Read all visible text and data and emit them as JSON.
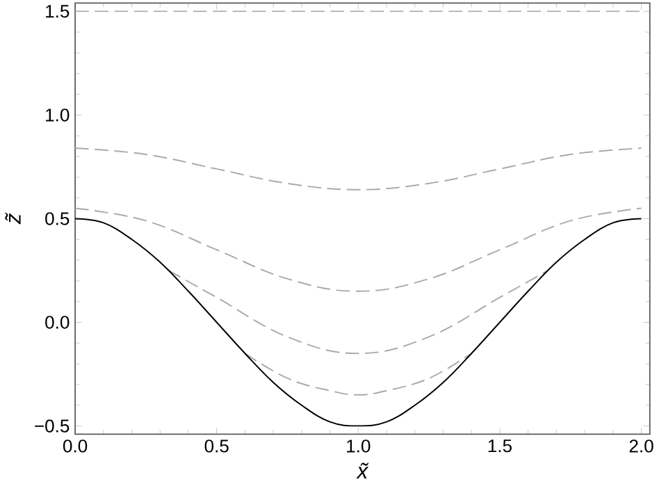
{
  "chart_data": {
    "type": "line",
    "xlabel": "x̃",
    "ylabel": "z̃",
    "xlim": [
      0,
      2.03
    ],
    "ylim": [
      -0.54,
      1.54
    ],
    "xticks": [
      {
        "value": 0,
        "label": "0.0"
      },
      0.5,
      {
        "value": 1,
        "label": "1.0"
      },
      1.5,
      {
        "value": 2,
        "label": "2.0"
      }
    ],
    "yticks": [
      {
        "value": -0.5,
        "label": "−0.5"
      },
      {
        "value": 0,
        "label": "0.0"
      },
      0.5,
      {
        "value": 1,
        "label": "1.0"
      },
      1.5
    ],
    "grid": false,
    "series": [
      {
        "color": "#aaaaaa",
        "line_style": "dashed",
        "x": [
          0,
          0.5,
          1,
          1.5,
          2
        ],
        "values": [
          1.5,
          1.5,
          1.5,
          1.5,
          1.5
        ]
      },
      {
        "color": "#aaaaaa",
        "line_style": "dashed",
        "x": [
          0,
          0.25,
          0.5,
          0.75,
          1,
          1.25,
          1.5,
          1.75,
          2
        ],
        "values": [
          0.84,
          0.81,
          0.74,
          0.67,
          0.64,
          0.67,
          0.74,
          0.81,
          0.84
        ]
      },
      {
        "color": "#aaaaaa",
        "line_style": "dashed",
        "x": [
          0,
          0.25,
          0.5,
          0.75,
          1,
          1.25,
          1.5,
          1.75,
          2
        ],
        "values": [
          0.55,
          0.49,
          0.35,
          0.21,
          0.15,
          0.21,
          0.35,
          0.49,
          0.55
        ]
      },
      {
        "color": "#aaaaaa",
        "line_style": "dashed",
        "x": [
          0.33,
          0.5,
          0.75,
          1,
          1.25,
          1.5,
          1.67
        ],
        "values": [
          0.25,
          0.12,
          -0.07,
          -0.15,
          -0.07,
          0.12,
          0.25
        ]
      },
      {
        "color": "#aaaaaa",
        "line_style": "dashed",
        "x": [
          0.6,
          0.75,
          0.9,
          1,
          1.1,
          1.25,
          1.4
        ],
        "values": [
          -0.15,
          -0.27,
          -0.33,
          -0.35,
          -0.33,
          -0.27,
          -0.15
        ]
      },
      {
        "color": "#000000",
        "line_style": "solid",
        "x": [
          0,
          0.1,
          0.2,
          0.3,
          0.4,
          0.5,
          0.6,
          0.7,
          0.8,
          0.9,
          1,
          1.1,
          1.2,
          1.3,
          1.4,
          1.5,
          1.6,
          1.7,
          1.8,
          1.9,
          2
        ],
        "values": [
          0.5,
          0.48,
          0.4,
          0.29,
          0.15,
          0,
          -0.15,
          -0.29,
          -0.4,
          -0.48,
          -0.5,
          -0.48,
          -0.4,
          -0.29,
          -0.15,
          0,
          0.15,
          0.29,
          0.4,
          0.48,
          0.5
        ]
      }
    ]
  }
}
